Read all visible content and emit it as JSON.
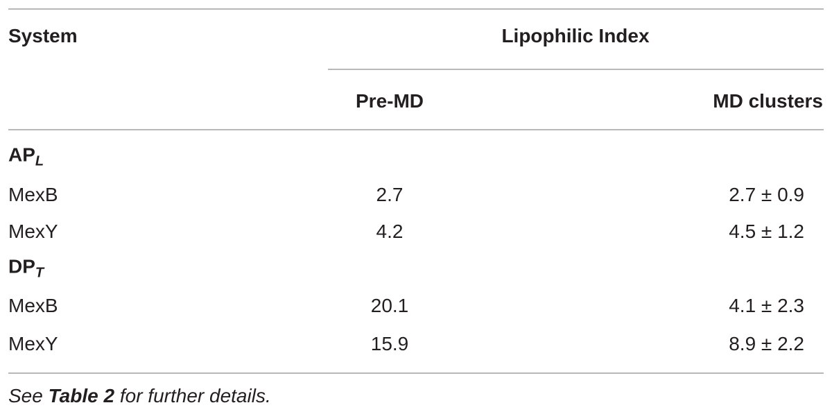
{
  "table": {
    "header": {
      "system": "System",
      "group": "Lipophilic Index",
      "columns": [
        "Pre-MD",
        "MD clusters"
      ]
    },
    "sections": [
      {
        "label": {
          "main": "AP",
          "sub": "L"
        },
        "rows": [
          {
            "name": "MexB",
            "pre_md": 2.7,
            "md_clusters": "2.7 ± 0.9"
          },
          {
            "name": "MexY",
            "pre_md": 4.2,
            "md_clusters": "4.5 ± 1.2"
          }
        ]
      },
      {
        "label": {
          "main": "DP",
          "sub": "T"
        },
        "rows": [
          {
            "name": "MexB",
            "pre_md": 20.1,
            "md_clusters": "4.1 ± 2.3"
          },
          {
            "name": "MexY",
            "pre_md": 15.9,
            "md_clusters": "8.9 ± 2.2"
          }
        ]
      }
    ],
    "footnote": [
      "See",
      "Table 2",
      "for further details."
    ]
  }
}
